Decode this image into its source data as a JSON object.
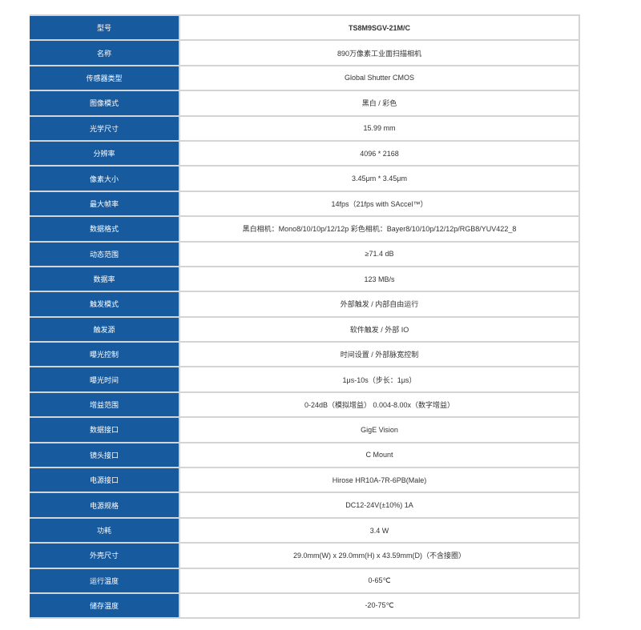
{
  "spec_table": {
    "header_color": "#175a9e",
    "rows": [
      {
        "label": "型号",
        "value": "TS8M9SGV-21M/C"
      },
      {
        "label": "名称",
        "value": "890万像素工业面扫描相机"
      },
      {
        "label": "传感器类型",
        "value": "Global Shutter CMOS"
      },
      {
        "label": "图像模式",
        "value": "黑白 / 彩色"
      },
      {
        "label": "光学尺寸",
        "value": "15.99 mm"
      },
      {
        "label": "分辨率",
        "value": "4096 * 2168"
      },
      {
        "label": "像素大小",
        "value": "3.45μm * 3.45μm"
      },
      {
        "label": "最大帧率",
        "value": "14fps（21fps with SAccel™）"
      },
      {
        "label": "数据格式",
        "value": "黑白相机：Mono8/10/10p/12/12p 彩色相机：Bayer8/10/10p/12/12p/RGB8/YUV422_8"
      },
      {
        "label": "动态范围",
        "value": "≥71.4 dB"
      },
      {
        "label": "数据率",
        "value": "123 MB/s"
      },
      {
        "label": "触发模式",
        "value": "外部触发 / 内部自由运行"
      },
      {
        "label": "触发源",
        "value": "软件触发 / 外部 IO"
      },
      {
        "label": "曝光控制",
        "value": "时间设置 / 外部脉宽控制"
      },
      {
        "label": "曝光时间",
        "value": "1μs-10s（步长：1μs）"
      },
      {
        "label": "增益范围",
        "value": "0-24dB（模拟增益） 0.004-8.00x（数字增益）"
      },
      {
        "label": "数据接口",
        "value": "GigE Vision"
      },
      {
        "label": "镜头接口",
        "value": "C Mount"
      },
      {
        "label": "电源接口",
        "value": "Hirose HR10A-7R-6PB(Male)"
      },
      {
        "label": "电源规格",
        "value": "DC12-24V(±10%) 1A"
      },
      {
        "label": "功耗",
        "value": "3.4 W"
      },
      {
        "label": "外壳尺寸",
        "value": "29.0mm(W) x 29.0mm(H) x 43.59mm(D)（不含接圈）"
      },
      {
        "label": "运行温度",
        "value": "0-65℃"
      },
      {
        "label": "储存温度",
        "value": "-20-75℃"
      }
    ]
  }
}
